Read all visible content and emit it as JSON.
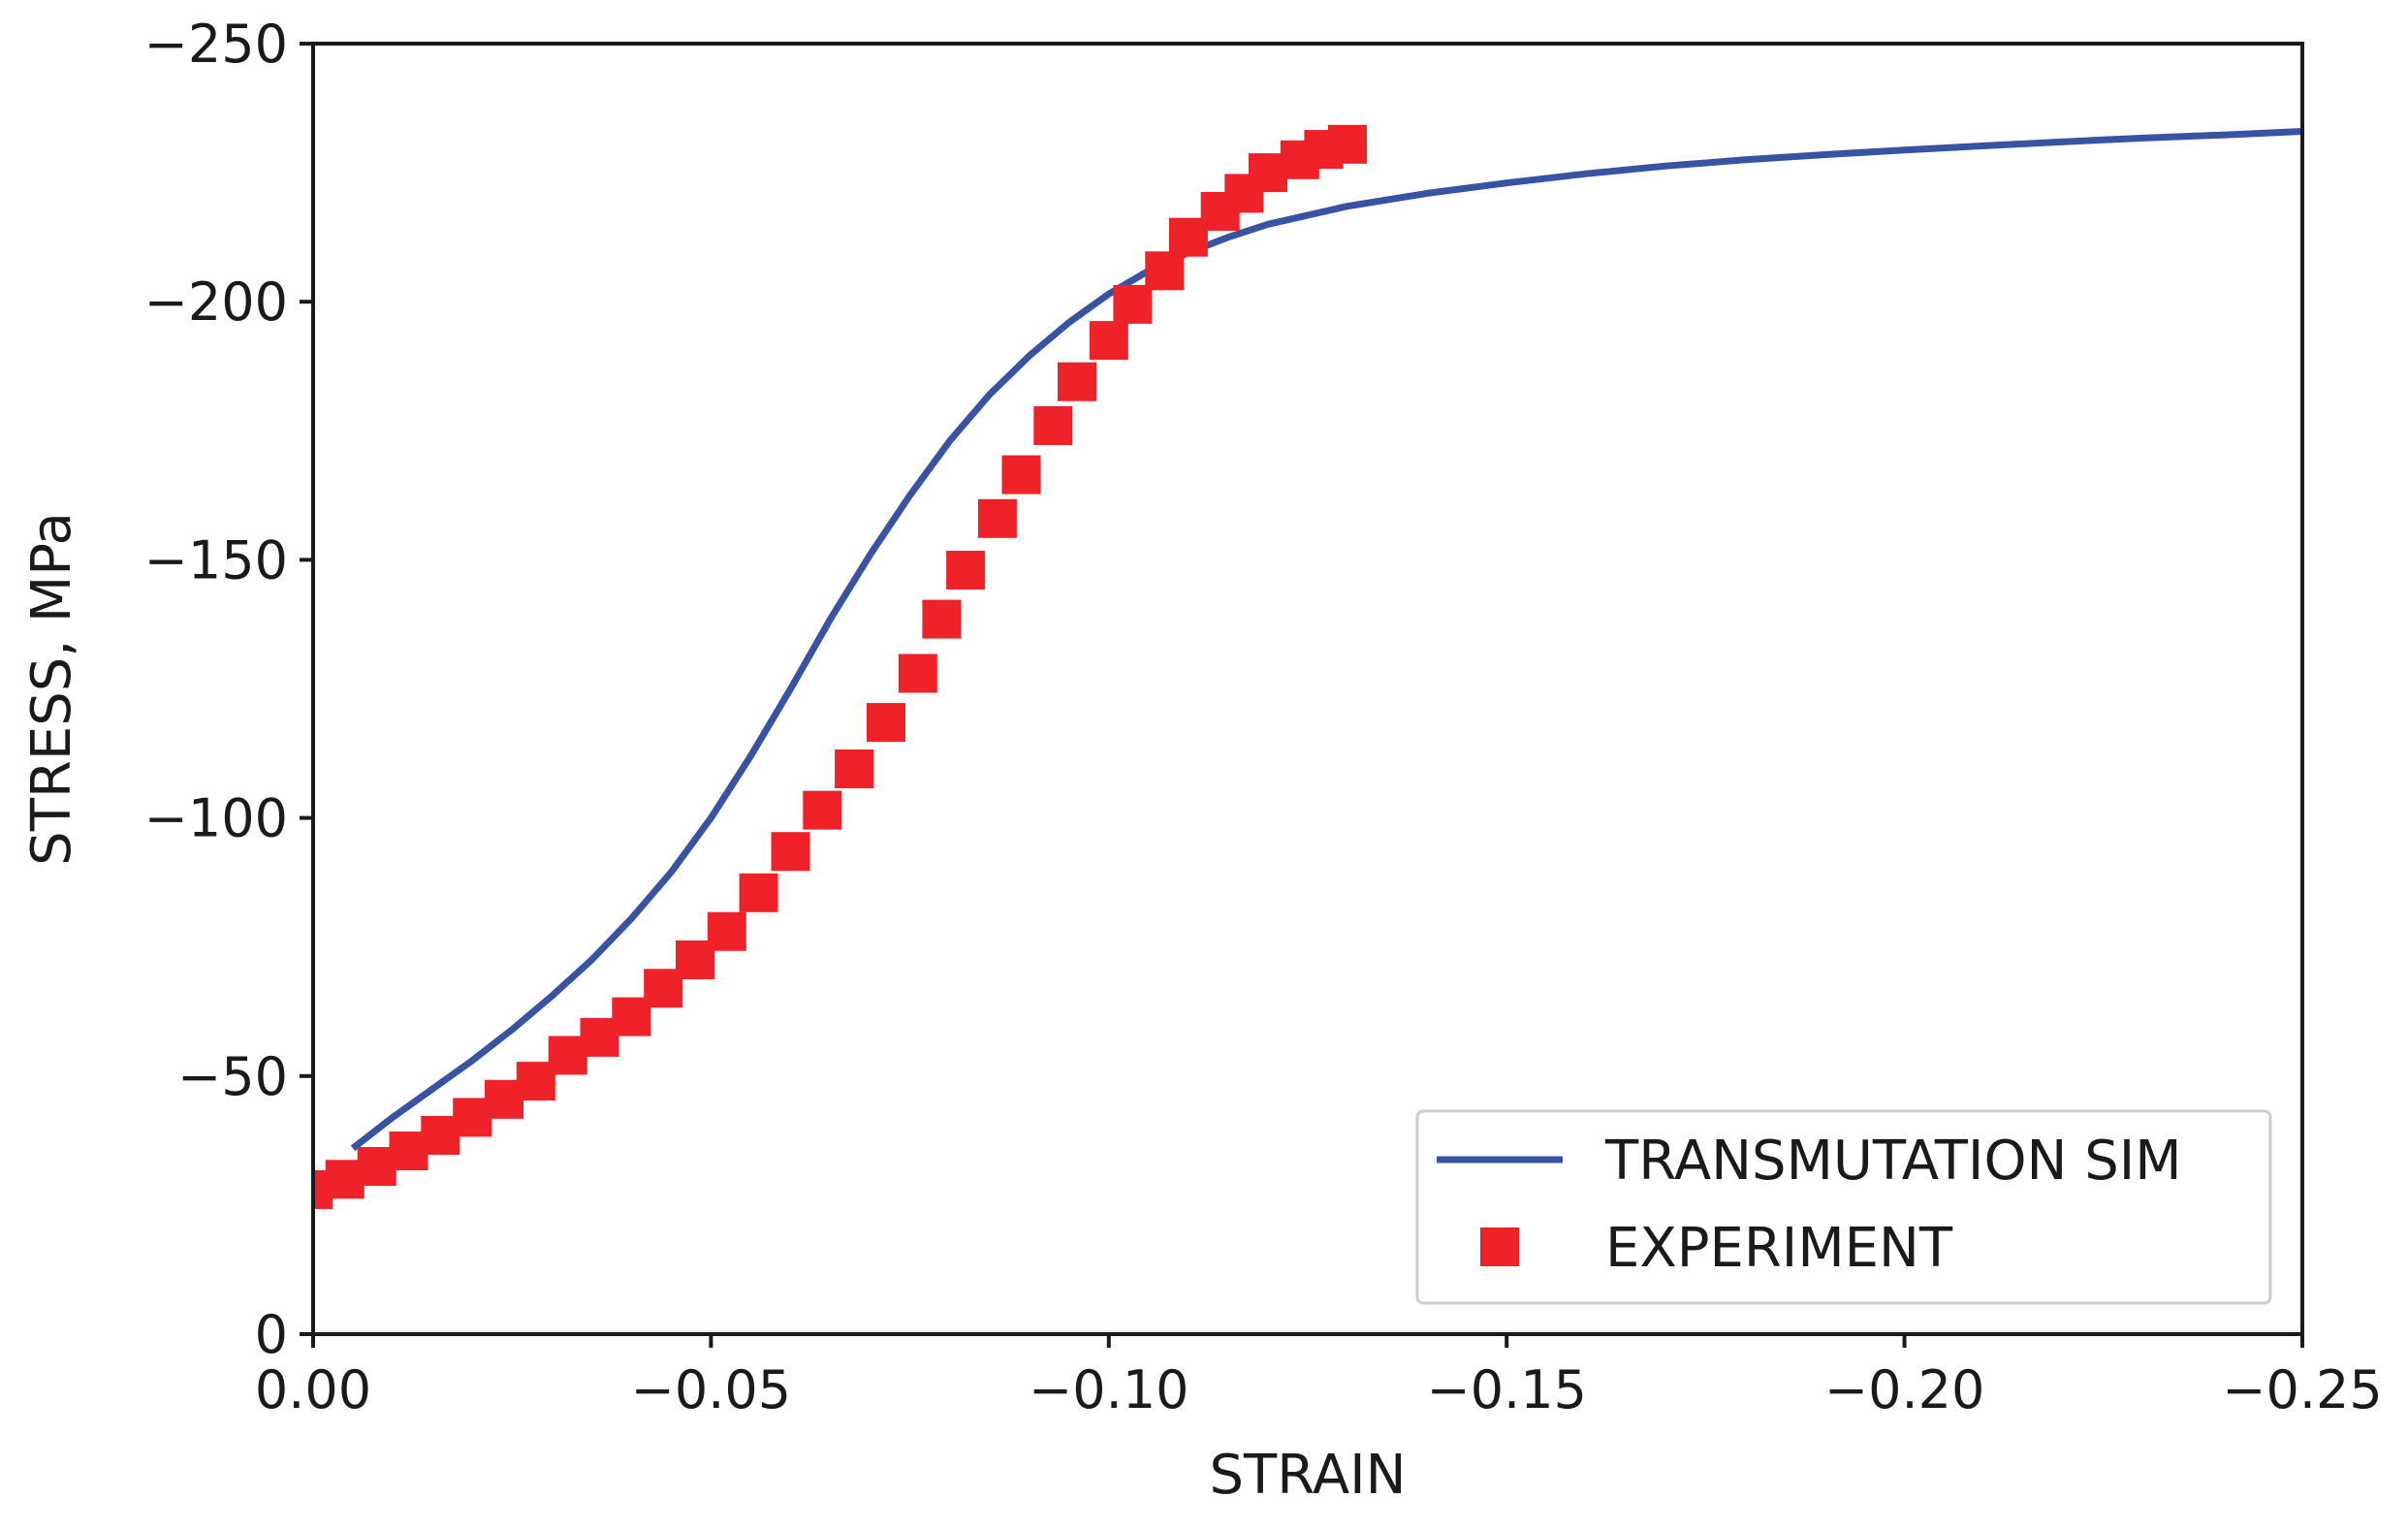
{
  "chart_data": {
    "type": "line",
    "title": "",
    "xlabel": "STRAIN",
    "ylabel": "STRESS, MPa",
    "xlim": [
      0,
      -0.25
    ],
    "ylim": [
      0,
      -250
    ],
    "xticks": [
      0,
      -0.05,
      -0.1,
      -0.15,
      -0.2,
      -0.25
    ],
    "xtick_labels": [
      "0.00",
      "−0.05",
      "−0.10",
      "−0.15",
      "−0.20",
      "−0.25"
    ],
    "yticks": [
      0,
      -50,
      -100,
      -150,
      -200,
      -250
    ],
    "ytick_labels": [
      "0",
      "−50",
      "−100",
      "−150",
      "−200",
      "−250"
    ],
    "grid": false,
    "legend_position": "bottom-right",
    "series": [
      {
        "name": "TRANSMUTATION SIM",
        "style": "line",
        "color": "#3953a4",
        "x": [
          -0.005,
          -0.01,
          -0.015,
          -0.02,
          -0.025,
          -0.03,
          -0.035,
          -0.04,
          -0.045,
          -0.05,
          -0.055,
          -0.06,
          -0.065,
          -0.07,
          -0.075,
          -0.08,
          -0.085,
          -0.09,
          -0.095,
          -0.1,
          -0.105,
          -0.11,
          -0.115,
          -0.12,
          -0.13,
          -0.14,
          -0.15,
          -0.16,
          -0.17,
          -0.18,
          -0.19,
          -0.2,
          -0.21,
          -0.22,
          -0.23,
          -0.24,
          -0.25
        ],
        "y": [
          -36,
          -42,
          -47.5,
          -53,
          -59,
          -65.5,
          -72.5,
          -80.5,
          -89.5,
          -100,
          -112,
          -125,
          -138.5,
          -151,
          -162.5,
          -173,
          -182,
          -189.5,
          -196,
          -201.5,
          -206,
          -209.5,
          -212.5,
          -215,
          -218.5,
          -221,
          -223,
          -224.8,
          -226.3,
          -227.5,
          -228.5,
          -229.4,
          -230.2,
          -231,
          -231.7,
          -232.3,
          -233
        ]
      },
      {
        "name": "EXPERIMENT",
        "style": "square-markers",
        "color": "#ef2129",
        "x": [
          0.0,
          -0.004,
          -0.008,
          -0.012,
          -0.016,
          -0.02,
          -0.024,
          -0.028,
          -0.032,
          -0.036,
          -0.04,
          -0.044,
          -0.048,
          -0.052,
          -0.056,
          -0.06,
          -0.064,
          -0.068,
          -0.072,
          -0.076,
          -0.079,
          -0.082,
          -0.086,
          -0.089,
          -0.093,
          -0.096,
          -0.1,
          -0.103,
          -0.107,
          -0.11,
          -0.114,
          -0.117,
          -0.12,
          -0.124,
          -0.127,
          -0.13
        ],
        "y": [
          -28,
          -30,
          -32.5,
          -35.5,
          -38.5,
          -42,
          -45.5,
          -49,
          -54,
          -57.5,
          -61.5,
          -67,
          -72.5,
          -78,
          -85.5,
          -93.5,
          -101.5,
          -109.5,
          -118.5,
          -128,
          -138.5,
          -148,
          -158,
          -166.5,
          -176,
          -184.5,
          -192.5,
          -199.5,
          -206,
          -212.5,
          -217.5,
          -221,
          -225,
          -227.5,
          -229.5,
          -230.5
        ]
      }
    ]
  }
}
